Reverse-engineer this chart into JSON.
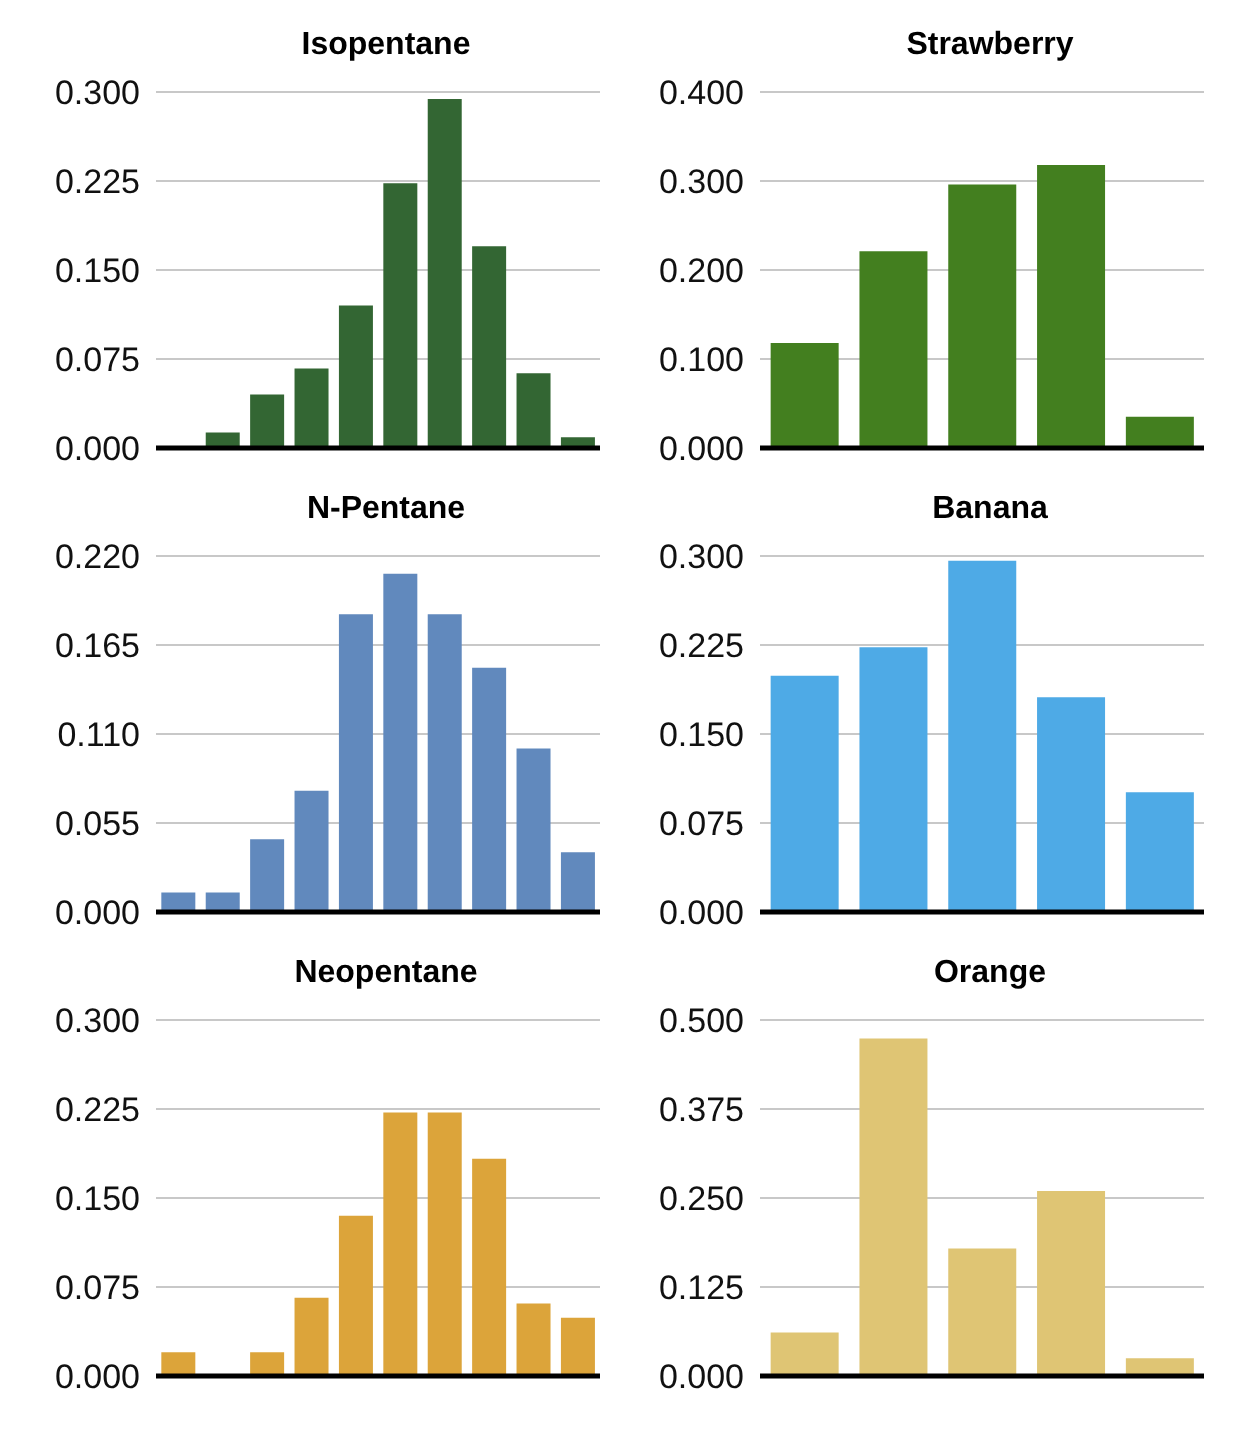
{
  "chart_data": [
    {
      "type": "bar",
      "title": "Isopentane",
      "categories": [
        null,
        null,
        null,
        null,
        null,
        null,
        null,
        null,
        null,
        null
      ],
      "values": [
        0,
        0.013,
        0.045,
        0.067,
        0.12,
        0.223,
        0.294,
        0.17,
        0.063,
        0.009
      ],
      "color": "#336633",
      "ylim": [
        0,
        0.3
      ],
      "yticks": [
        {
          "value": 0,
          "label": "0.000"
        },
        {
          "value": 0.075,
          "label": "0.075"
        },
        {
          "value": 0.15,
          "label": "0.150"
        },
        {
          "value": 0.225,
          "label": "0.225"
        },
        {
          "value": 0.3,
          "label": "0.300"
        }
      ],
      "grid": "y",
      "tick_labels": "y"
    },
    {
      "type": "bar",
      "title": "Strawberry",
      "categories": [
        null,
        null,
        null,
        null,
        null
      ],
      "values": [
        0.118,
        0.221,
        0.296,
        0.318,
        0.035
      ],
      "color": "#437f1f",
      "ylim": [
        0,
        0.4
      ],
      "yticks": [
        {
          "value": 0,
          "label": "0.000"
        },
        {
          "value": 0.1,
          "label": "0.100"
        },
        {
          "value": 0.2,
          "label": "0.200"
        },
        {
          "value": 0.3,
          "label": "0.300"
        },
        {
          "value": 0.4,
          "label": "0.400"
        }
      ],
      "grid": "y",
      "tick_labels": "y"
    },
    {
      "type": "bar",
      "title": "N-Pentane",
      "categories": [
        null,
        null,
        null,
        null,
        null,
        null,
        null,
        null,
        null,
        null
      ],
      "values": [
        0.012,
        0.012,
        0.045,
        0.075,
        0.184,
        0.209,
        0.184,
        0.151,
        0.101,
        0.037
      ],
      "color": "#6189bd",
      "ylim": [
        0,
        0.22
      ],
      "yticks": [
        {
          "value": 0,
          "label": "0.000"
        },
        {
          "value": 0.055,
          "label": "0.055"
        },
        {
          "value": 0.11,
          "label": "0.110"
        },
        {
          "value": 0.165,
          "label": "0.165"
        },
        {
          "value": 0.22,
          "label": "0.220"
        }
      ],
      "grid": "y",
      "tick_labels": "y"
    },
    {
      "type": "bar",
      "title": "Banana",
      "categories": [
        null,
        null,
        null,
        null,
        null
      ],
      "values": [
        0.199,
        0.223,
        0.296,
        0.181,
        0.101
      ],
      "color": "#4eaae6",
      "ylim": [
        0,
        0.3
      ],
      "yticks": [
        {
          "value": 0,
          "label": "0.000"
        },
        {
          "value": 0.075,
          "label": "0.075"
        },
        {
          "value": 0.15,
          "label": "0.150"
        },
        {
          "value": 0.225,
          "label": "0.225"
        },
        {
          "value": 0.3,
          "label": "0.300"
        }
      ],
      "grid": "y",
      "tick_labels": "y"
    },
    {
      "type": "bar",
      "title": "Neopentane",
      "categories": [
        null,
        null,
        null,
        null,
        null,
        null,
        null,
        null,
        null,
        null
      ],
      "values": [
        0.02,
        0,
        0.02,
        0.066,
        0.135,
        0.222,
        0.222,
        0.183,
        0.061,
        0.049
      ],
      "color": "#dca43a",
      "ylim": [
        0,
        0.3
      ],
      "yticks": [
        {
          "value": 0,
          "label": "0.000"
        },
        {
          "value": 0.075,
          "label": "0.075"
        },
        {
          "value": 0.15,
          "label": "0.150"
        },
        {
          "value": 0.225,
          "label": "0.225"
        },
        {
          "value": 0.3,
          "label": "0.300"
        }
      ],
      "grid": "y",
      "tick_labels": "y"
    },
    {
      "type": "bar",
      "title": "Orange",
      "categories": [
        null,
        null,
        null,
        null,
        null
      ],
      "values": [
        0.061,
        0.474,
        0.179,
        0.26,
        0.025
      ],
      "color": "#dfc574",
      "ylim": [
        0,
        0.5
      ],
      "yticks": [
        {
          "value": 0,
          "label": "0.000"
        },
        {
          "value": 0.125,
          "label": "0.125"
        },
        {
          "value": 0.25,
          "label": "0.250"
        },
        {
          "value": 0.375,
          "label": "0.375"
        },
        {
          "value": 0.5,
          "label": "0.500"
        }
      ],
      "grid": "y",
      "tick_labels": "y"
    }
  ]
}
